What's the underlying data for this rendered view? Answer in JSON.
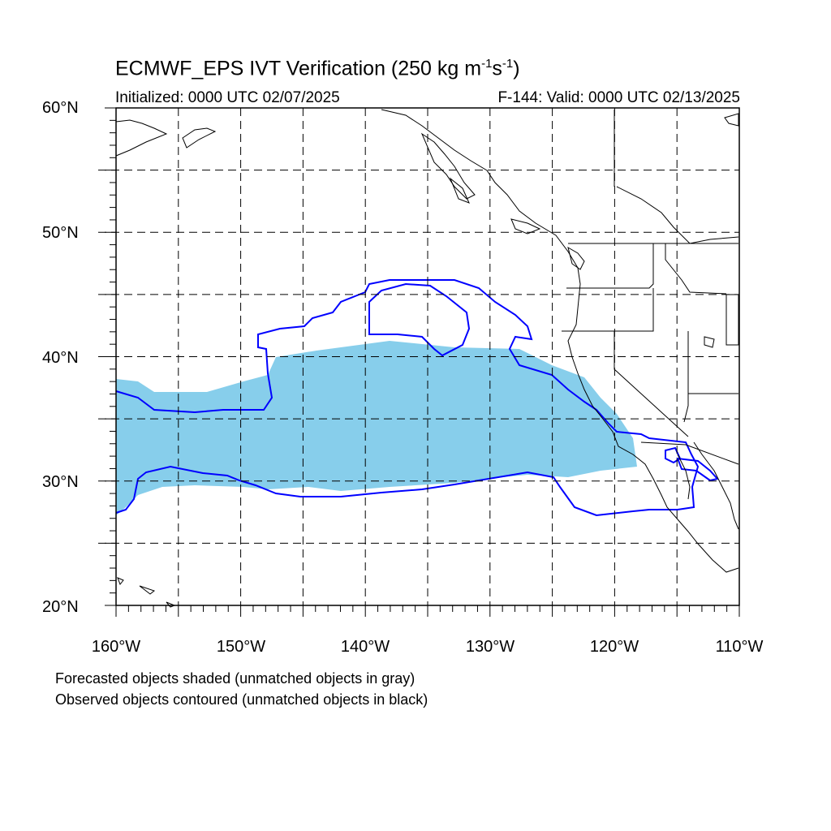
{
  "title": {
    "main": "ECMWF_EPS IVT Verification (250 kg m",
    "exp1": "-1",
    "mid": "s",
    "exp2": "-1",
    "close": ")"
  },
  "subtitle_left": "Initialized: 0000 UTC 02/07/2025",
  "subtitle_right": "F-144: Valid: 0000 UTC 02/13/2025",
  "lat_labels": [
    "60°N",
    "50°N",
    "40°N",
    "30°N",
    "20°N"
  ],
  "lon_labels": [
    "160°W",
    "150°W",
    "140°W",
    "130°W",
    "120°W",
    "110°W"
  ],
  "footnotes": [
    "Forecasted objects shaded (unmatched objects in gray)",
    "Observed objects contoured (unmatched objects in black)"
  ],
  "colors": {
    "forecast_fill": "#87ceeb",
    "observed_contour": "#0000ff",
    "coastline": "#000000",
    "grid": "#000000"
  },
  "map": {
    "lon_range": [
      -160,
      -110
    ],
    "lat_range": [
      20,
      60
    ],
    "grid": "dashed every 5 degrees"
  }
}
